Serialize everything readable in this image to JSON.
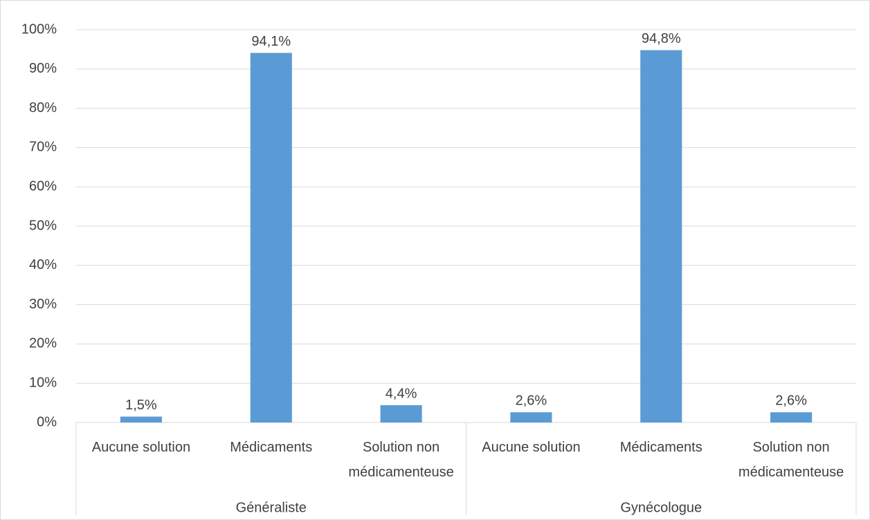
{
  "chart_data": {
    "type": "bar",
    "categories": [
      "Aucune solution",
      "Médicaments",
      "Solution non médicamenteuse",
      "Aucune solution",
      "Médicaments",
      "Solution non médicamenteuse"
    ],
    "groups": [
      "Généraliste",
      "Gynécologue"
    ],
    "values": [
      1.5,
      94.1,
      4.4,
      2.6,
      94.8,
      2.6
    ],
    "value_labels": [
      "1,5%",
      "94,1%",
      "4,4%",
      "2,6%",
      "94,8%",
      "2,6%"
    ],
    "color": "#5b9bd5",
    "ylim": [
      0,
      100
    ],
    "yticks": [
      {
        "value": 0,
        "label": "0%"
      },
      {
        "value": 10,
        "label": "10%"
      },
      {
        "value": 20,
        "label": "20%"
      },
      {
        "value": 30,
        "label": "30%"
      },
      {
        "value": 40,
        "label": "40%"
      },
      {
        "value": 50,
        "label": "50%"
      },
      {
        "value": 60,
        "label": "60%"
      },
      {
        "value": 70,
        "label": "70%"
      },
      {
        "value": 80,
        "label": "80%"
      },
      {
        "value": 90,
        "label": "90%"
      },
      {
        "value": 100,
        "label": "100%"
      }
    ],
    "grid": true
  }
}
